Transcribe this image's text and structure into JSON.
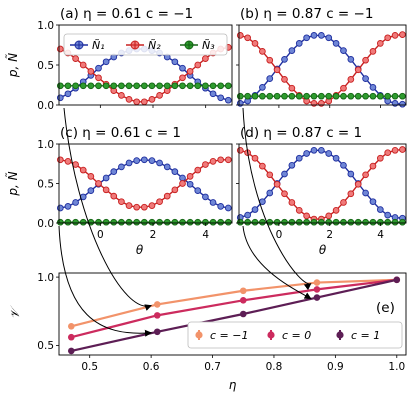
{
  "colors": {
    "N1": "#1f2f9f",
    "N1_fill": "#6f86d6",
    "N2": "#c82020",
    "N2_fill": "#f07a7a",
    "N3": "#146414",
    "N3_fill": "#2e9b2e",
    "c_m1": "#f2936a",
    "c_0": "#cc2b5e",
    "c_1": "#5d1e55",
    "arrow": "#000000"
  },
  "chart_data": [
    {
      "id": "a",
      "type": "line",
      "title": "(a)  η = 0.61   c = −1",
      "ylabel": "p, Ñ",
      "xlabel": "",
      "ylim": [
        0,
        1
      ],
      "xlim": [
        -1.57,
        5.0
      ],
      "xticks": [],
      "yticks": [
        "0.0",
        "0.5",
        "1.0"
      ],
      "legend": {
        "placement": "top",
        "entries": [
          "Ñ₁",
          "Ñ₂",
          "Ñ₃"
        ]
      },
      "series": [
        {
          "name": "Ñ₁",
          "color_key": "N1",
          "x": [
            -1.52,
            -1.23,
            -0.94,
            -0.65,
            -0.36,
            -0.07,
            0.22,
            0.51,
            0.8,
            1.09,
            1.38,
            1.67,
            1.96,
            2.25,
            2.54,
            2.83,
            3.12,
            3.41,
            3.7,
            3.99,
            4.28,
            4.57,
            4.86
          ],
          "y": [
            0.09,
            0.14,
            0.21,
            0.29,
            0.37,
            0.46,
            0.54,
            0.6,
            0.65,
            0.68,
            0.7,
            0.7,
            0.68,
            0.65,
            0.6,
            0.54,
            0.46,
            0.37,
            0.29,
            0.21,
            0.14,
            0.09,
            0.06
          ]
        },
        {
          "name": "Ñ₂",
          "color_key": "N2",
          "x": [
            -1.52,
            -1.23,
            -0.94,
            -0.65,
            -0.36,
            -0.07,
            0.22,
            0.51,
            0.8,
            1.09,
            1.38,
            1.67,
            1.96,
            2.25,
            2.54,
            2.83,
            3.12,
            3.41,
            3.7,
            3.99,
            4.28,
            4.57,
            4.86
          ],
          "y": [
            0.7,
            0.65,
            0.58,
            0.5,
            0.42,
            0.34,
            0.26,
            0.18,
            0.12,
            0.07,
            0.04,
            0.04,
            0.07,
            0.12,
            0.18,
            0.26,
            0.34,
            0.42,
            0.5,
            0.58,
            0.65,
            0.7,
            0.72
          ]
        },
        {
          "name": "Ñ₃",
          "color_key": "N3",
          "x": [
            -1.52,
            -1.23,
            -0.94,
            -0.65,
            -0.36,
            -0.07,
            0.22,
            0.51,
            0.8,
            1.09,
            1.38,
            1.67,
            1.96,
            2.25,
            2.54,
            2.83,
            3.12,
            3.41,
            3.7,
            3.99,
            4.28,
            4.57,
            4.86
          ],
          "y": [
            0.24,
            0.24,
            0.24,
            0.24,
            0.24,
            0.24,
            0.24,
            0.24,
            0.24,
            0.24,
            0.24,
            0.24,
            0.24,
            0.24,
            0.24,
            0.24,
            0.24,
            0.24,
            0.24,
            0.24,
            0.24,
            0.24,
            0.24
          ]
        }
      ]
    },
    {
      "id": "b",
      "type": "line",
      "title": "(b)  η = 0.87   c = −1",
      "ylabel": "",
      "xlabel": "",
      "ylim": [
        0,
        1
      ],
      "xlim": [
        -1.57,
        5.0
      ],
      "xticks": [],
      "yticks": [],
      "series": [
        {
          "name": "Ñ₁",
          "color_key": "N1",
          "x": [
            -1.52,
            -1.23,
            -0.94,
            -0.65,
            -0.36,
            -0.07,
            0.22,
            0.51,
            0.8,
            1.09,
            1.38,
            1.67,
            1.96,
            2.25,
            2.54,
            2.83,
            3.12,
            3.41,
            3.7,
            3.99,
            4.28,
            4.57,
            4.86
          ],
          "y": [
            0.02,
            0.05,
            0.12,
            0.22,
            0.33,
            0.45,
            0.57,
            0.68,
            0.77,
            0.84,
            0.87,
            0.87,
            0.84,
            0.77,
            0.68,
            0.57,
            0.45,
            0.33,
            0.22,
            0.12,
            0.05,
            0.02,
            0.01
          ]
        },
        {
          "name": "Ñ₂",
          "color_key": "N2",
          "x": [
            -1.52,
            -1.23,
            -0.94,
            -0.65,
            -0.36,
            -0.07,
            0.22,
            0.51,
            0.8,
            1.09,
            1.38,
            1.67,
            1.96,
            2.25,
            2.54,
            2.83,
            3.12,
            3.41,
            3.7,
            3.99,
            4.28,
            4.57,
            4.86
          ],
          "y": [
            0.87,
            0.84,
            0.77,
            0.67,
            0.56,
            0.44,
            0.32,
            0.21,
            0.12,
            0.05,
            0.02,
            0.02,
            0.05,
            0.12,
            0.21,
            0.32,
            0.44,
            0.56,
            0.67,
            0.77,
            0.84,
            0.87,
            0.88
          ]
        },
        {
          "name": "Ñ₃",
          "color_key": "N3",
          "x": [
            -1.52,
            -1.23,
            -0.94,
            -0.65,
            -0.36,
            -0.07,
            0.22,
            0.51,
            0.8,
            1.09,
            1.38,
            1.67,
            1.96,
            2.25,
            2.54,
            2.83,
            3.12,
            3.41,
            3.7,
            3.99,
            4.28,
            4.57,
            4.86
          ],
          "y": [
            0.11,
            0.11,
            0.11,
            0.11,
            0.11,
            0.11,
            0.11,
            0.11,
            0.11,
            0.11,
            0.11,
            0.11,
            0.11,
            0.11,
            0.11,
            0.11,
            0.11,
            0.11,
            0.11,
            0.11,
            0.11,
            0.11,
            0.11
          ]
        }
      ]
    },
    {
      "id": "c",
      "type": "line",
      "title": "(c)  η = 0.61   c = 1",
      "ylabel": "p, Ñ",
      "xlabel": "θ",
      "ylim": [
        0,
        1
      ],
      "xlim": [
        -1.57,
        5.0
      ],
      "xticks": [
        "0",
        "2",
        "4"
      ],
      "yticks": [
        "0.0",
        "0.5",
        "1.0"
      ],
      "series": [
        {
          "name": "Ñ₁",
          "color_key": "N1",
          "x": [
            -1.52,
            -1.23,
            -0.94,
            -0.65,
            -0.36,
            -0.07,
            0.22,
            0.51,
            0.8,
            1.09,
            1.38,
            1.67,
            1.96,
            2.25,
            2.54,
            2.83,
            3.12,
            3.41,
            3.7,
            3.99,
            4.28,
            4.57,
            4.86
          ],
          "y": [
            0.19,
            0.21,
            0.26,
            0.33,
            0.41,
            0.49,
            0.57,
            0.65,
            0.71,
            0.76,
            0.79,
            0.8,
            0.79,
            0.76,
            0.71,
            0.65,
            0.57,
            0.49,
            0.41,
            0.33,
            0.26,
            0.21,
            0.19
          ]
        },
        {
          "name": "Ñ₂",
          "color_key": "N2",
          "x": [
            -1.52,
            -1.23,
            -0.94,
            -0.65,
            -0.36,
            -0.07,
            0.22,
            0.51,
            0.8,
            1.09,
            1.38,
            1.67,
            1.96,
            2.25,
            2.54,
            2.83,
            3.12,
            3.41,
            3.7,
            3.99,
            4.28,
            4.57,
            4.86
          ],
          "y": [
            0.8,
            0.78,
            0.74,
            0.67,
            0.59,
            0.5,
            0.42,
            0.34,
            0.27,
            0.22,
            0.2,
            0.2,
            0.22,
            0.27,
            0.34,
            0.42,
            0.5,
            0.59,
            0.67,
            0.74,
            0.78,
            0.8,
            0.8
          ]
        },
        {
          "name": "Ñ₃",
          "color_key": "N3",
          "x": [
            -1.52,
            -1.23,
            -0.94,
            -0.65,
            -0.36,
            -0.07,
            0.22,
            0.51,
            0.8,
            1.09,
            1.38,
            1.67,
            1.96,
            2.25,
            2.54,
            2.83,
            3.12,
            3.41,
            3.7,
            3.99,
            4.28,
            4.57,
            4.86
          ],
          "y": [
            0.01,
            0.01,
            0.01,
            0.01,
            0.01,
            0.01,
            0.01,
            0.01,
            0.01,
            0.01,
            0.01,
            0.01,
            0.01,
            0.01,
            0.01,
            0.01,
            0.01,
            0.01,
            0.01,
            0.01,
            0.01,
            0.01,
            0.01
          ]
        }
      ]
    },
    {
      "id": "d",
      "type": "line",
      "title": "(d)  η = 0.87   c = 1",
      "ylabel": "",
      "xlabel": "θ",
      "ylim": [
        0,
        1
      ],
      "xlim": [
        -1.57,
        5.0
      ],
      "xticks": [
        "0",
        "2",
        "4"
      ],
      "yticks": [],
      "series": [
        {
          "name": "Ñ₁",
          "color_key": "N1",
          "x": [
            -1.52,
            -1.23,
            -0.94,
            -0.65,
            -0.36,
            -0.07,
            0.22,
            0.51,
            0.8,
            1.09,
            1.38,
            1.67,
            1.96,
            2.25,
            2.54,
            2.83,
            3.12,
            3.41,
            3.7,
            3.99,
            4.28,
            4.57,
            4.86
          ],
          "y": [
            0.07,
            0.1,
            0.17,
            0.27,
            0.38,
            0.5,
            0.62,
            0.73,
            0.82,
            0.88,
            0.92,
            0.92,
            0.88,
            0.82,
            0.73,
            0.62,
            0.5,
            0.38,
            0.27,
            0.17,
            0.1,
            0.07,
            0.06
          ]
        },
        {
          "name": "Ñ₂",
          "color_key": "N2",
          "x": [
            -1.52,
            -1.23,
            -0.94,
            -0.65,
            -0.36,
            -0.07,
            0.22,
            0.51,
            0.8,
            1.09,
            1.38,
            1.67,
            1.96,
            2.25,
            2.54,
            2.83,
            3.12,
            3.41,
            3.7,
            3.99,
            4.28,
            4.57,
            4.86
          ],
          "y": [
            0.92,
            0.89,
            0.82,
            0.72,
            0.61,
            0.49,
            0.37,
            0.26,
            0.16,
            0.09,
            0.05,
            0.05,
            0.09,
            0.16,
            0.26,
            0.37,
            0.49,
            0.61,
            0.72,
            0.82,
            0.89,
            0.92,
            0.93
          ]
        },
        {
          "name": "Ñ₃",
          "color_key": "N3",
          "x": [
            -1.52,
            -1.23,
            -0.94,
            -0.65,
            -0.36,
            -0.07,
            0.22,
            0.51,
            0.8,
            1.09,
            1.38,
            1.67,
            1.96,
            2.25,
            2.54,
            2.83,
            3.12,
            3.41,
            3.7,
            3.99,
            4.28,
            4.57,
            4.86
          ],
          "y": [
            0.01,
            0.01,
            0.01,
            0.01,
            0.01,
            0.01,
            0.01,
            0.01,
            0.01,
            0.01,
            0.01,
            0.01,
            0.01,
            0.01,
            0.01,
            0.01,
            0.01,
            0.01,
            0.01,
            0.01,
            0.01,
            0.01,
            0.01
          ]
        }
      ]
    },
    {
      "id": "e",
      "type": "line",
      "title": "(e)",
      "ylabel": "𝒱",
      "xlabel": "η",
      "xlim": [
        0.45,
        1.015
      ],
      "ylim": [
        0.43,
        1.03
      ],
      "xticks": [
        "0.5",
        "0.6",
        "0.7",
        "0.8",
        "0.9",
        "1.0"
      ],
      "yticks": [
        "0.5",
        "1.0"
      ],
      "legend": {
        "placement": "bottom-right",
        "entries": [
          "c = −1",
          "c = 0",
          "c = 1"
        ]
      },
      "series": [
        {
          "name": "c = −1",
          "color_key": "c_m1",
          "x": [
            0.47,
            0.61,
            0.75,
            0.87,
            1.0
          ],
          "y": [
            0.64,
            0.8,
            0.9,
            0.96,
            0.98
          ]
        },
        {
          "name": "c = 0",
          "color_key": "c_0",
          "x": [
            0.47,
            0.61,
            0.75,
            0.87,
            1.0
          ],
          "y": [
            0.56,
            0.72,
            0.83,
            0.91,
            0.98
          ]
        },
        {
          "name": "c = 1",
          "color_key": "c_1",
          "x": [
            0.47,
            0.61,
            0.75,
            0.87,
            1.0
          ],
          "y": [
            0.46,
            0.6,
            0.73,
            0.85,
            0.98
          ]
        }
      ],
      "annotations": [
        {
          "from_panel": "a",
          "to_series": "c = −1",
          "to_x": 0.61
        },
        {
          "from_panel": "b",
          "to_series": "c = −1",
          "to_x": 0.87
        },
        {
          "from_panel": "c",
          "to_series": "c = 1",
          "to_x": 0.61
        },
        {
          "from_panel": "d",
          "to_series": "c = 1",
          "to_x": 0.87
        }
      ]
    }
  ]
}
